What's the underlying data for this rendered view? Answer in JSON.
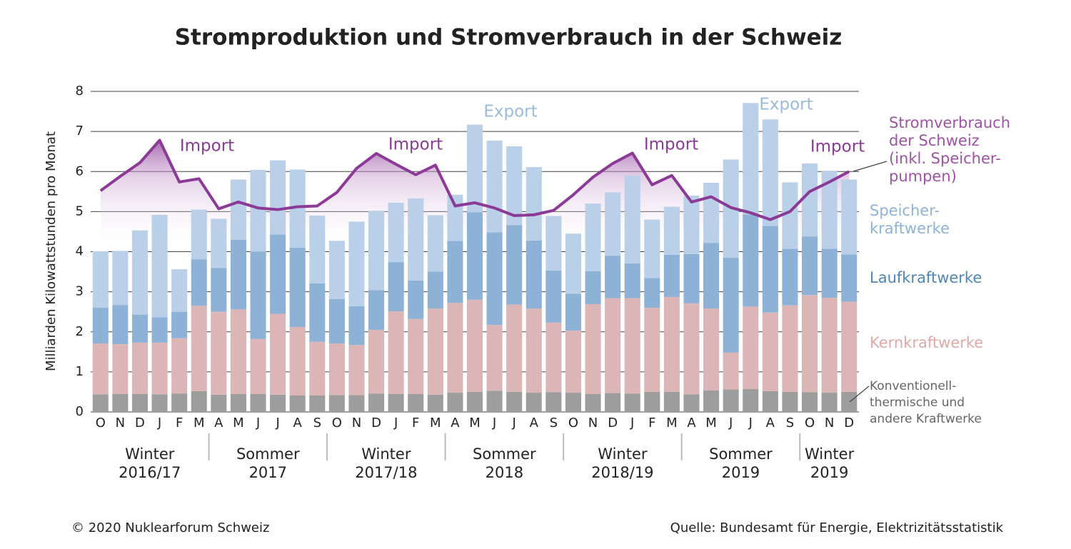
{
  "chart_data": {
    "type": "bar",
    "stacked": true,
    "title": "Stromproduktion und Stromverbrauch in der Schweiz",
    "y_label": "Milliarden Kilowattstunden pro Monat",
    "categories": [
      "O",
      "N",
      "D",
      "J",
      "F",
      "M",
      "A",
      "M",
      "J",
      "J",
      "A",
      "S",
      "O",
      "N",
      "D",
      "J",
      "F",
      "M",
      "A",
      "M",
      "J",
      "J",
      "A",
      "S",
      "O",
      "N",
      "D",
      "J",
      "F",
      "M",
      "A",
      "M",
      "J",
      "J",
      "A",
      "S",
      "O",
      "N",
      "D"
    ],
    "groups": [
      "Winter\n2016/17",
      "Sommer\n2017",
      "Winter\n2017/18",
      "Sommer\n2018",
      "Winter\n2018/19",
      "Sommer\n2019",
      "Winter\n2019"
    ],
    "ylim": [
      0,
      8
    ],
    "yticks": [
      0,
      1,
      2,
      3,
      4,
      5,
      6,
      7,
      8
    ],
    "grid": true,
    "series": [
      {
        "name": "Konventionell-\nthermische und\nandere Kraftwerke",
        "color": "#9d9d9d",
        "label_color": "#666666",
        "values": [
          0.44,
          0.45,
          0.45,
          0.44,
          0.46,
          0.52,
          0.43,
          0.45,
          0.45,
          0.43,
          0.41,
          0.41,
          0.42,
          0.42,
          0.46,
          0.45,
          0.45,
          0.43,
          0.48,
          0.5,
          0.53,
          0.5,
          0.48,
          0.49,
          0.48,
          0.45,
          0.47,
          0.46,
          0.5,
          0.5,
          0.44,
          0.54,
          0.56,
          0.57,
          0.52,
          0.5,
          0.49,
          0.48,
          0.5
        ]
      },
      {
        "name": "Kernkraftwerke",
        "color": "#dcb6b6",
        "label_color": "#e0a9a9",
        "values": [
          1.27,
          1.24,
          1.28,
          1.29,
          1.38,
          2.13,
          2.07,
          2.11,
          1.37,
          2.02,
          1.71,
          1.34,
          1.29,
          1.25,
          1.59,
          2.06,
          1.87,
          2.15,
          2.24,
          2.3,
          1.64,
          2.18,
          2.1,
          1.74,
          1.55,
          2.24,
          2.37,
          2.38,
          2.1,
          2.37,
          2.27,
          2.04,
          0.92,
          2.06,
          1.96,
          2.16,
          2.43,
          2.37,
          2.25
        ]
      },
      {
        "name": "Laufkraftwerke",
        "color": "#8eb1d6",
        "label_color": "#4f86b8",
        "values": [
          0.89,
          0.98,
          0.7,
          0.63,
          0.66,
          1.16,
          1.09,
          1.74,
          2.18,
          1.98,
          1.98,
          1.46,
          1.11,
          0.97,
          0.99,
          1.23,
          0.96,
          0.92,
          1.55,
          2.18,
          2.31,
          1.98,
          1.7,
          1.3,
          0.92,
          0.82,
          1.06,
          0.87,
          0.74,
          1.05,
          1.23,
          1.64,
          2.37,
          2.3,
          2.16,
          1.41,
          1.46,
          1.22,
          1.18
        ]
      },
      {
        "name": "Speicher-\nkraftwerke",
        "color": "#b9d0e8",
        "label_color": "#8fb3d6",
        "values": [
          1.41,
          1.35,
          2.1,
          2.56,
          1.06,
          1.24,
          1.23,
          1.5,
          2.04,
          1.85,
          1.95,
          1.69,
          1.45,
          2.11,
          1.98,
          1.48,
          2.05,
          1.41,
          1.15,
          2.19,
          2.29,
          1.97,
          1.83,
          1.36,
          1.5,
          1.69,
          1.58,
          2.19,
          1.46,
          1.2,
          1.46,
          1.5,
          2.45,
          2.78,
          2.66,
          1.66,
          1.82,
          1.95,
          1.87
        ]
      },
      {
        "name": "Stromverbrauch\nder Schweiz\n(inkl. Speicher-\npumpen)",
        "type": "line",
        "color": "#8b3a96",
        "label_color": "#a052a8",
        "values": [
          5.52,
          5.88,
          6.22,
          6.78,
          5.74,
          5.82,
          5.07,
          5.24,
          5.09,
          5.05,
          5.12,
          5.14,
          5.48,
          6.08,
          6.45,
          6.18,
          5.92,
          6.16,
          5.14,
          5.22,
          5.09,
          4.9,
          4.92,
          5.03,
          5.42,
          5.86,
          6.2,
          6.46,
          5.67,
          5.9,
          5.24,
          5.37,
          5.1,
          4.97,
          4.8,
          5.0,
          5.5,
          5.74,
          6.0
        ]
      }
    ],
    "annotations": [
      "Import",
      "Import",
      "Import",
      "Import",
      "Export",
      "Export"
    ],
    "copyright": "© 2020 Nuklearforum Schweiz",
    "source": "Quelle: Bundesamt für Energie, Elektrizitätsstatistik"
  }
}
